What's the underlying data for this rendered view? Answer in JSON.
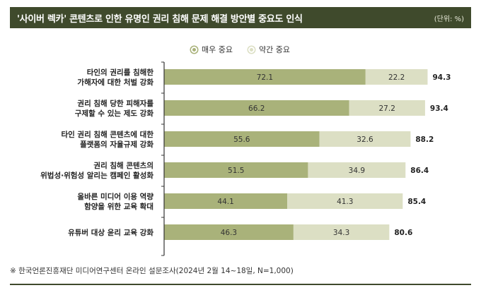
{
  "header": {
    "title": "'사이버 렉카' 콘텐츠로 인한 유명인 권리 침해 문제 해결 방안별 중요도 인식",
    "unit": "(단위: %)"
  },
  "footnote": "※ 한국언론진흥재단 미디어연구센터 온라인 설문조사(2024년 2월 14~18일, N=1,000)",
  "colors": {
    "header_bg": "#3f4a2c",
    "very_important": "#a9b27a",
    "somewhat_important": "#dcdfc4",
    "axis": "#333333"
  },
  "chart_data": {
    "type": "bar",
    "orientation": "horizontal",
    "stacked": true,
    "legend_position": "top-center",
    "categories": [
      [
        "타인의 권리를 침해한",
        "가해자에 대한 처벌 강화"
      ],
      [
        "권리 침해 당한 피해자를",
        "구제할 수 있는 제도 강화"
      ],
      [
        "타인 권리 침해 콘텐츠에 대한",
        "플랫폼의 자율규제 강화"
      ],
      [
        "권리 침해 콘텐츠의",
        "위법성·위험성 알리는 캠페인 활성화"
      ],
      [
        "올바른 미디어 이용 역량",
        "함양을 위한 교육 확대"
      ],
      [
        "유튜버 대상 윤리 교육 강화"
      ]
    ],
    "series": [
      {
        "name": "매우 중요",
        "values": [
          72.1,
          66.2,
          55.6,
          51.5,
          44.1,
          46.3
        ]
      },
      {
        "name": "약간 중요",
        "values": [
          22.2,
          27.2,
          32.6,
          34.9,
          41.3,
          34.3
        ]
      }
    ],
    "totals": [
      94.3,
      93.4,
      88.2,
      86.4,
      85.4,
      80.6
    ],
    "xlim": [
      0,
      100
    ]
  }
}
